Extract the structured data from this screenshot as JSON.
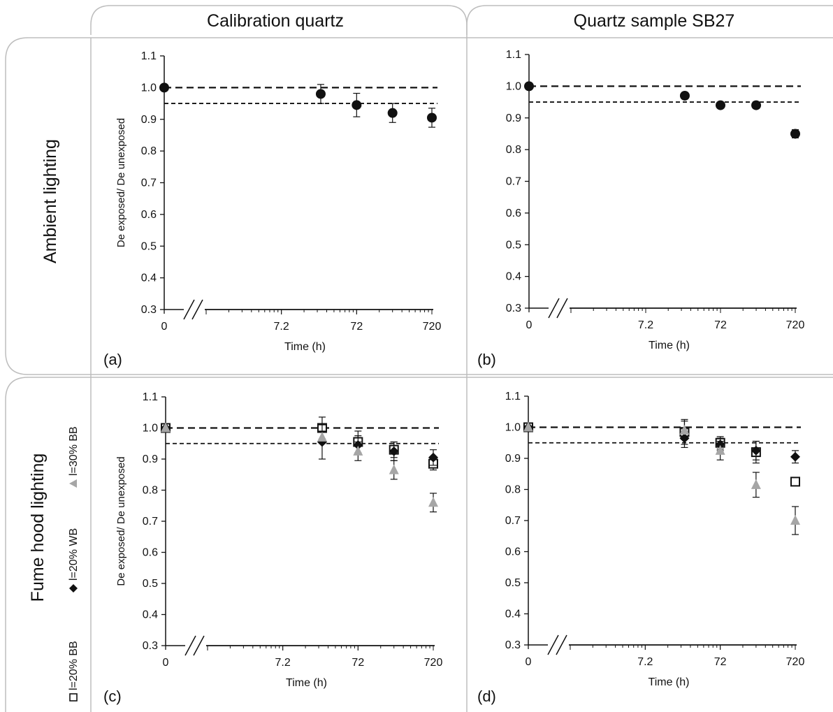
{
  "figure": {
    "columns": [
      "Calibration quartz",
      "Quartz sample SB27"
    ],
    "rows": [
      "Ambient lighting",
      "Fume hood lighting"
    ]
  },
  "legend": {
    "entries": [
      {
        "label": "l=20% BB",
        "marker": "open-square",
        "color": "#111111"
      },
      {
        "label": "l=20% WB",
        "marker": "diamond",
        "color": "#111111"
      },
      {
        "label": "l=30% BB",
        "marker": "triangle",
        "color": "#a6a6a6"
      }
    ]
  },
  "chart_data": [
    {
      "type": "scatter",
      "panel_label": "(a)",
      "xlabel": "Time (h)",
      "ylabel": "De exposed/ De unexposed",
      "x_scale": "log, with axis break after 0",
      "x_ticks": [
        "0",
        "7.2",
        "72",
        "720"
      ],
      "y_ticks": [
        "1.1",
        "1.0",
        "0.9",
        "0.8",
        "0.7",
        "0.6",
        "0.5",
        "0.4",
        "0.3"
      ],
      "ylim": [
        0.3,
        1.1
      ],
      "reference_lines": [
        1.0,
        0.95
      ],
      "series": [
        {
          "marker": "circle",
          "color": "#111111",
          "points": [
            {
              "x": 0,
              "y": 1.0,
              "err": 0
            },
            {
              "x": 24,
              "y": 0.98,
              "err": 0.03
            },
            {
              "x": 72,
              "y": 0.945,
              "err": 0.037
            },
            {
              "x": 216,
              "y": 0.92,
              "err": 0.03
            },
            {
              "x": 720,
              "y": 0.905,
              "err": 0.03
            }
          ]
        }
      ]
    },
    {
      "type": "scatter",
      "panel_label": "(b)",
      "xlabel": "Time (h)",
      "ylabel": "",
      "x_scale": "log, with axis break after 0",
      "x_ticks": [
        "0",
        "7.2",
        "72",
        "720"
      ],
      "y_ticks": [
        "1.1",
        "1.0",
        "0.9",
        "0.8",
        "0.7",
        "0.6",
        "0.5",
        "0.4",
        "0.3"
      ],
      "ylim": [
        0.3,
        1.1
      ],
      "reference_lines": [
        1.0,
        0.95
      ],
      "series": [
        {
          "marker": "circle",
          "color": "#111111",
          "points": [
            {
              "x": 0,
              "y": 1.0,
              "err": 0
            },
            {
              "x": 24,
              "y": 0.97,
              "err": 0.01
            },
            {
              "x": 72,
              "y": 0.94,
              "err": 0.008
            },
            {
              "x": 216,
              "y": 0.94,
              "err": 0.01
            },
            {
              "x": 720,
              "y": 0.85,
              "err": 0.013
            }
          ]
        }
      ]
    },
    {
      "type": "scatter",
      "panel_label": "(c)",
      "xlabel": "Time (h)",
      "ylabel": "De exposed/ De unexposed",
      "x_scale": "log, with axis break after 0",
      "x_ticks": [
        "0",
        "7.2",
        "72",
        "720"
      ],
      "y_ticks": [
        "1.1",
        "1.0",
        "0.9",
        "0.8",
        "0.7",
        "0.6",
        "0.5",
        "0.4",
        "0.3"
      ],
      "ylim": [
        0.3,
        1.1
      ],
      "reference_lines": [
        1.0,
        0.95
      ],
      "series": [
        {
          "marker": "open-square",
          "color": "#111111",
          "points": [
            {
              "x": 0,
              "y": 1.0,
              "err": 0
            },
            {
              "x": 24,
              "y": 1.0,
              "err": 0.035
            },
            {
              "x": 72,
              "y": 0.955,
              "err": 0.035
            },
            {
              "x": 216,
              "y": 0.93,
              "err": 0.025
            },
            {
              "x": 720,
              "y": 0.885,
              "err": 0.02
            }
          ]
        },
        {
          "marker": "diamond",
          "color": "#111111",
          "points": [
            {
              "x": 0,
              "y": 1.0,
              "err": 0
            },
            {
              "x": 24,
              "y": 0.955,
              "err": 0.055
            },
            {
              "x": 72,
              "y": 0.945,
              "err": 0.03
            },
            {
              "x": 216,
              "y": 0.925,
              "err": 0.03
            },
            {
              "x": 720,
              "y": 0.905,
              "err": 0.025
            }
          ]
        },
        {
          "marker": "triangle",
          "color": "#a6a6a6",
          "points": [
            {
              "x": 0,
              "y": 1.0,
              "err": 0
            },
            {
              "x": 24,
              "y": 0.97,
              "err": 0.02
            },
            {
              "x": 72,
              "y": 0.925,
              "err": 0.03
            },
            {
              "x": 216,
              "y": 0.865,
              "err": 0.03
            },
            {
              "x": 720,
              "y": 0.76,
              "err": 0.03
            }
          ]
        }
      ]
    },
    {
      "type": "scatter",
      "panel_label": "(d)",
      "xlabel": "Time (h)",
      "ylabel": "",
      "x_scale": "log, with axis break after 0",
      "x_ticks": [
        "0",
        "7.2",
        "72",
        "720"
      ],
      "y_ticks": [
        "1.1",
        "1.0",
        "0.9",
        "0.8",
        "0.7",
        "0.6",
        "0.5",
        "0.4",
        "0.3"
      ],
      "ylim": [
        0.3,
        1.1
      ],
      "reference_lines": [
        1.0,
        0.95
      ],
      "series": [
        {
          "marker": "open-square",
          "color": "#111111",
          "points": [
            {
              "x": 0,
              "y": 1.0,
              "err": 0
            },
            {
              "x": 24,
              "y": 0.985,
              "err": 0.04
            },
            {
              "x": 72,
              "y": 0.95,
              "err": 0.02
            },
            {
              "x": 216,
              "y": 0.92,
              "err": 0.035
            },
            {
              "x": 720,
              "y": 0.825,
              "err": 0.01
            }
          ]
        },
        {
          "marker": "diamond",
          "color": "#111111",
          "points": [
            {
              "x": 0,
              "y": 1.0,
              "err": 0
            },
            {
              "x": 24,
              "y": 0.965,
              "err": 0.03
            },
            {
              "x": 72,
              "y": 0.945,
              "err": 0.02
            },
            {
              "x": 216,
              "y": 0.925,
              "err": 0.03
            },
            {
              "x": 720,
              "y": 0.905,
              "err": 0.02
            }
          ]
        },
        {
          "marker": "triangle",
          "color": "#a6a6a6",
          "points": [
            {
              "x": 0,
              "y": 1.0,
              "err": 0
            },
            {
              "x": 24,
              "y": 0.99,
              "err": 0.03
            },
            {
              "x": 72,
              "y": 0.925,
              "err": 0.03
            },
            {
              "x": 216,
              "y": 0.815,
              "err": 0.04
            },
            {
              "x": 720,
              "y": 0.7,
              "err": 0.045
            }
          ]
        }
      ]
    }
  ]
}
